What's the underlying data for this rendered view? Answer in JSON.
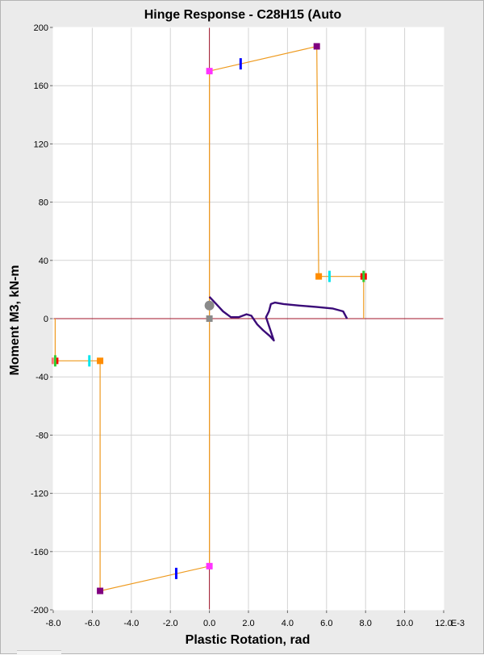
{
  "chart_data": {
    "type": "line",
    "title": "Hinge Response - C28H15 (Auto",
    "xlabel": "Plastic Rotation, rad",
    "ylabel": "Moment M3, kN-m",
    "x_unit": "E-3",
    "xlim": [
      -8.0,
      12.0
    ],
    "ylim": [
      -200,
      200
    ],
    "x_ticks": [
      "-8.0",
      "-6.0",
      "-4.0",
      "-2.0",
      "0.0",
      "2.0",
      "4.0",
      "6.0",
      "8.0",
      "10.0",
      "12.0"
    ],
    "y_ticks": [
      "200",
      "160",
      "120",
      "80",
      "40",
      "0",
      "-40",
      "-80",
      "-120",
      "-160",
      "-200"
    ],
    "grid": true,
    "colors": {
      "backbone": "#ee9a1e",
      "axis_zero": "#a0142a",
      "response": "#3a0a78",
      "point_B": "#ff33ff",
      "point_C": "#800080",
      "point_D": "#ff8c00",
      "point_E": "#ff0000",
      "point_IO": "#0000ff",
      "point_LS": "#00e5ee",
      "point_CP": "#32cd32",
      "current": "#8a8a8a"
    },
    "series": [
      {
        "role": "backbone",
        "x": [
          7.9,
          7.9,
          5.6,
          5.5,
          0.0,
          0.0,
          -5.6,
          -5.6,
          -7.9,
          -7.9
        ],
        "y": [
          0,
          29,
          29,
          187,
          170,
          -170,
          -187,
          -29,
          -29,
          0
        ]
      },
      {
        "role": "response",
        "x": [
          0.0,
          0.35,
          0.7,
          1.1,
          1.5,
          1.9,
          2.15,
          2.45,
          2.75,
          3.1,
          3.3,
          2.9,
          3.05,
          3.15,
          3.35,
          3.8,
          4.6,
          5.5,
          6.3,
          6.85,
          7.05
        ],
        "y": [
          15,
          10,
          5,
          1,
          1,
          3,
          2,
          -4,
          -8,
          -12,
          -15,
          1,
          5,
          10,
          11,
          10,
          9,
          8,
          7,
          5,
          0
        ]
      }
    ],
    "markers": [
      {
        "label": "B",
        "x": 0.0,
        "y": 170,
        "shape": "square",
        "color": "#ff33ff"
      },
      {
        "label": "B",
        "x": 0.0,
        "y": -170,
        "shape": "square",
        "color": "#ff33ff"
      },
      {
        "label": "C",
        "x": 5.5,
        "y": 187,
        "shape": "square",
        "color": "#800080"
      },
      {
        "label": "C",
        "x": -5.6,
        "y": -187,
        "shape": "square",
        "color": "#800080"
      },
      {
        "label": "D",
        "x": 5.6,
        "y": 29,
        "shape": "square",
        "color": "#ff8c00"
      },
      {
        "label": "D",
        "x": -5.6,
        "y": -29,
        "shape": "square",
        "color": "#ff8c00"
      },
      {
        "label": "E",
        "x": 7.9,
        "y": 29,
        "shape": "square",
        "color": "#ff0000"
      },
      {
        "label": "E",
        "x": -7.9,
        "y": -29,
        "shape": "square",
        "color": "#ff0000"
      },
      {
        "label": "A",
        "x": 0.0,
        "y": 0,
        "shape": "square",
        "color": "#8a8a8a"
      },
      {
        "label": "current",
        "x": 0.0,
        "y": 9,
        "shape": "circle",
        "color": "#8a8a8a"
      },
      {
        "label": "IO",
        "x": 1.6,
        "y": 175,
        "shape": "tick",
        "color": "#0000ff"
      },
      {
        "label": "IO",
        "x": -1.7,
        "y": -175,
        "shape": "tick",
        "color": "#0000ff"
      },
      {
        "label": "LS",
        "x": 6.15,
        "y": 29,
        "shape": "tick",
        "color": "#00e5ee"
      },
      {
        "label": "LS",
        "x": -6.15,
        "y": -29,
        "shape": "tick",
        "color": "#00e5ee"
      },
      {
        "label": "CP",
        "x": 7.9,
        "y": 29,
        "shape": "tick",
        "color": "#32cd32"
      },
      {
        "label": "CP",
        "x": -7.9,
        "y": -29,
        "shape": "tick",
        "color": "#32cd32"
      }
    ]
  }
}
